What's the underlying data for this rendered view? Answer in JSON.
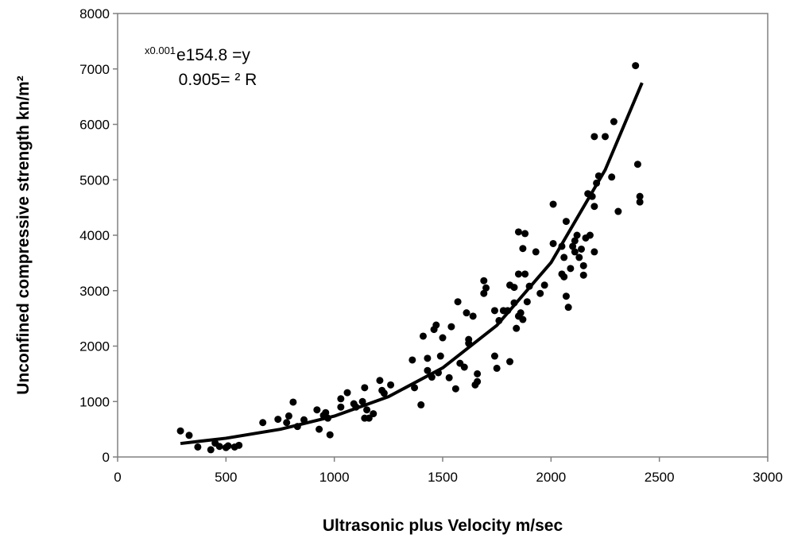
{
  "chart_data": {
    "type": "scatter",
    "x_label": "Ultrasonic plus Velocity m/sec",
    "y_label": "Unconfined compressive strength kn/m²",
    "annotation": {
      "superscript": "x0.001",
      "equation": "e154.8 =y",
      "r_squared": "0.905= ² R"
    },
    "xlim": [
      0,
      3000
    ],
    "xticks": [
      0,
      500,
      1000,
      1500,
      2000,
      2500,
      3000
    ],
    "ylim": [
      0,
      8000
    ],
    "yticks": [
      0,
      1000,
      2000,
      3000,
      4000,
      5000,
      6000,
      7000,
      8000
    ],
    "grid": false,
    "series": [
      {
        "kind": "markers",
        "color": "#000000",
        "x": [
          290,
          330,
          370,
          430,
          450,
          470,
          500,
          510,
          540,
          560,
          670,
          740,
          780,
          790,
          810,
          830,
          860,
          920,
          930,
          950,
          960,
          970,
          980,
          1030,
          1030,
          1060,
          1090,
          1100,
          1130,
          1140,
          1140,
          1150,
          1160,
          1180,
          1210,
          1220,
          1230,
          1260,
          1360,
          1370,
          1400,
          1410,
          1430,
          1430,
          1450,
          1460,
          1470,
          1480,
          1490,
          1500,
          1530,
          1540,
          1560,
          1570,
          1580,
          1600,
          1610,
          1620,
          1620,
          1640,
          1650,
          1660,
          1660,
          1690,
          1690,
          1700,
          1740,
          1740,
          1750,
          1760,
          1780,
          1800,
          1810,
          1810,
          1830,
          1830,
          1840,
          1850,
          1850,
          1850,
          1860,
          1870,
          1870,
          1880,
          1880,
          1890,
          1900,
          1930,
          1950,
          1970,
          2010,
          2010,
          2050,
          2050,
          2060,
          2060,
          2070,
          2070,
          2080,
          2090,
          2100,
          2110,
          2110,
          2120,
          2130,
          2140,
          2150,
          2150,
          2160,
          2170,
          2180,
          2190,
          2200,
          2200,
          2200,
          2210,
          2220,
          2250,
          2280,
          2290,
          2310,
          2390,
          2400,
          2410,
          2410
        ],
        "values": [
          470,
          390,
          180,
          130,
          250,
          190,
          170,
          200,
          180,
          210,
          620,
          680,
          620,
          740,
          990,
          550,
          670,
          850,
          500,
          750,
          800,
          700,
          400,
          1050,
          900,
          1160,
          960,
          900,
          1000,
          700,
          1250,
          850,
          700,
          780,
          1380,
          1200,
          1150,
          1300,
          1750,
          1250,
          940,
          2180,
          1560,
          1780,
          1440,
          2300,
          2380,
          1520,
          1820,
          2150,
          1430,
          2350,
          1230,
          2800,
          1690,
          1620,
          2600,
          2120,
          2050,
          2540,
          1300,
          1360,
          1500,
          2950,
          3180,
          3050,
          1820,
          2640,
          1600,
          2460,
          2640,
          2640,
          3100,
          1720,
          3060,
          2780,
          2320,
          2540,
          3300,
          4060,
          2600,
          2480,
          3760,
          3300,
          4030,
          2800,
          3080,
          3700,
          2950,
          3100,
          3850,
          4560,
          3800,
          3300,
          3250,
          3600,
          4250,
          2900,
          2700,
          3400,
          3800,
          3700,
          3900,
          4000,
          3600,
          3750,
          3450,
          3280,
          3950,
          4750,
          4000,
          4700,
          4520,
          3700,
          5780,
          4940,
          5070,
          5780,
          5050,
          6050,
          4430,
          7060,
          5280,
          4700,
          4600
        ]
      },
      {
        "kind": "line",
        "color": "#000000",
        "x": [
          290,
          500,
          750,
          1000,
          1250,
          1500,
          1750,
          2000,
          2250,
          2420
        ],
        "values": [
          243,
          338,
          499,
          737,
          1088,
          1607,
          2374,
          3506,
          5179,
          6750
        ]
      }
    ]
  }
}
